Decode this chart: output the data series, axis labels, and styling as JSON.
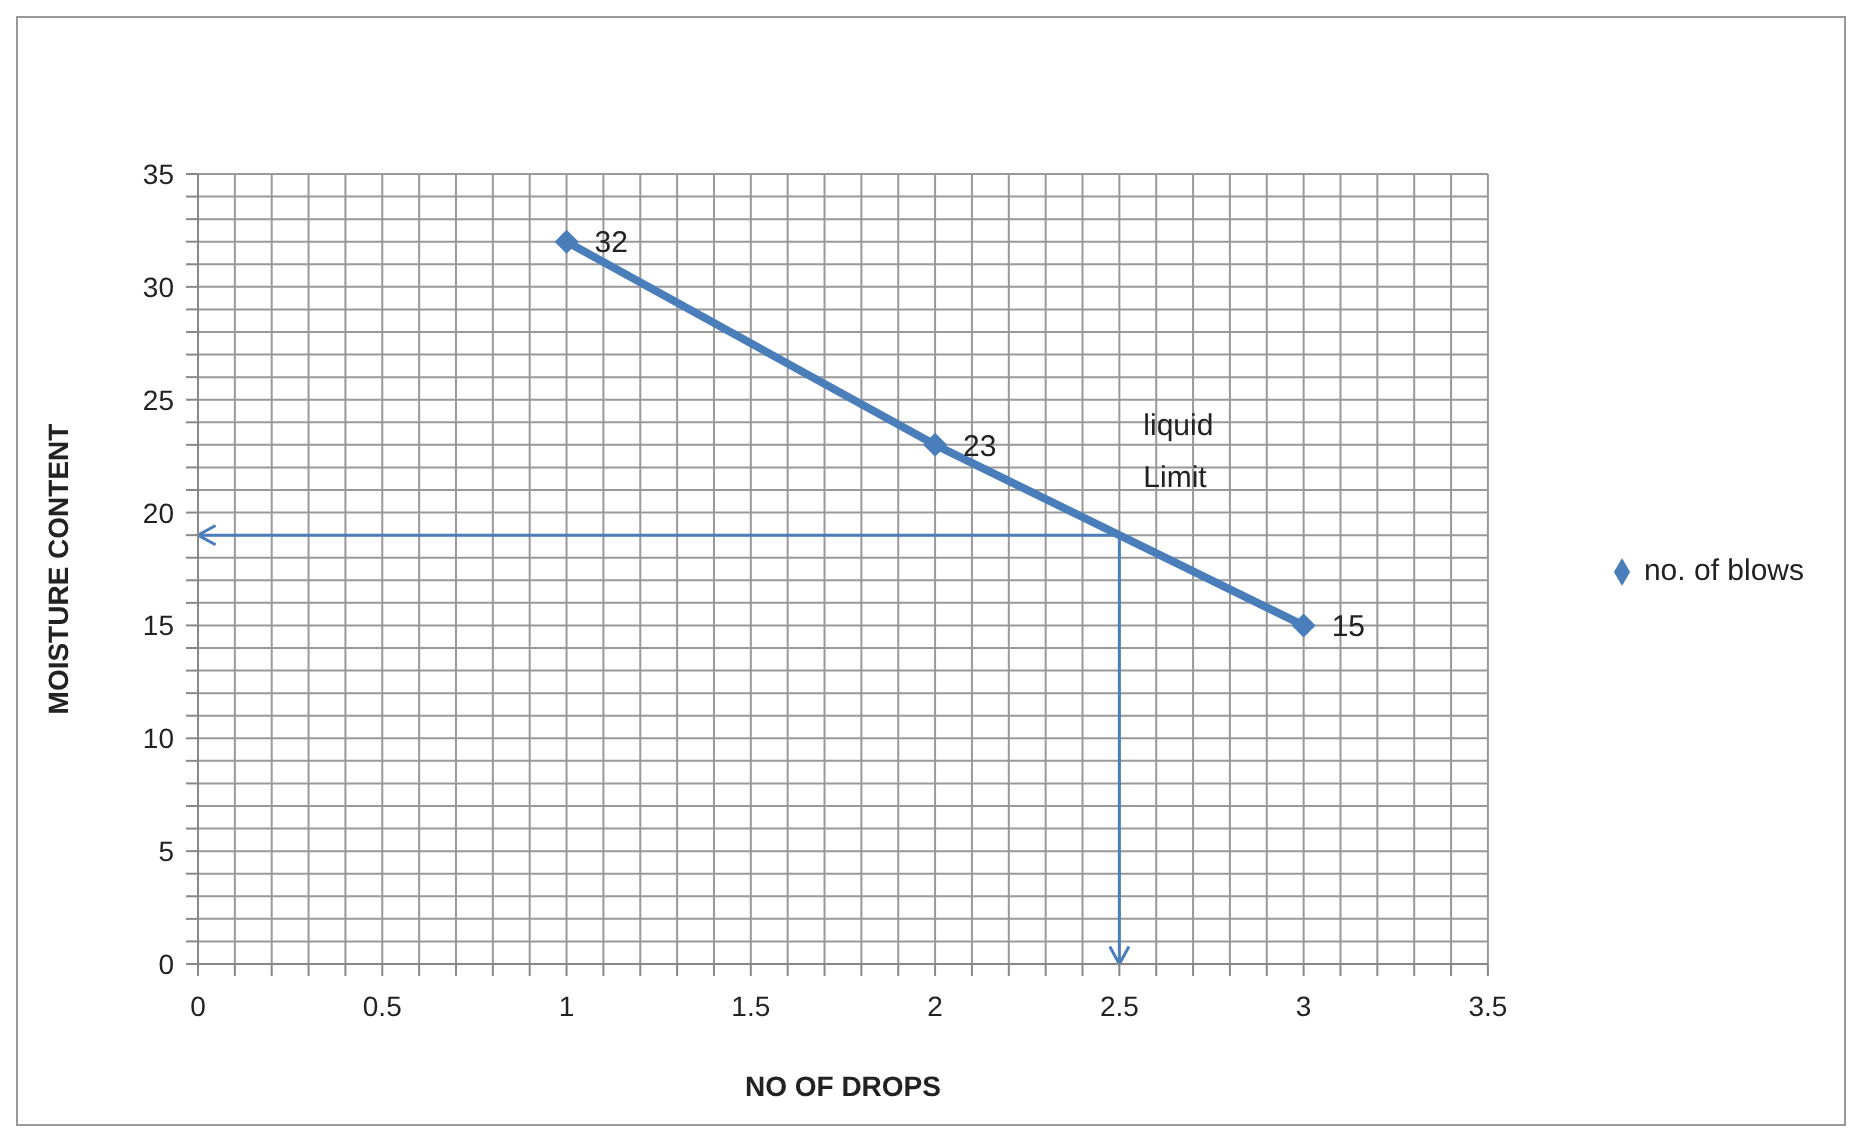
{
  "chart_data": {
    "type": "line",
    "xlabel": "NO OF DROPS",
    "ylabel": "MOISTURE  CONTENT",
    "x": [
      1,
      2,
      3
    ],
    "series": [
      {
        "name": "no. of blows",
        "color": "#4a7ebb",
        "values": [
          32,
          23,
          15
        ]
      }
    ],
    "xlim": [
      0,
      3.5
    ],
    "xticks": [
      0,
      {
        "value": 0.1,
        "label": null
      },
      {
        "value": 0.2,
        "label": null
      },
      {
        "value": 0.3,
        "label": null
      },
      {
        "value": 0.4,
        "label": null
      },
      0.5,
      {
        "value": 0.6,
        "label": null
      },
      {
        "value": 0.7,
        "label": null
      },
      {
        "value": 0.8,
        "label": null
      },
      {
        "value": 0.9,
        "label": null
      },
      1,
      {
        "value": 1.1,
        "label": null
      },
      {
        "value": 1.2,
        "label": null
      },
      {
        "value": 1.3,
        "label": null
      },
      {
        "value": 1.4,
        "label": null
      },
      1.5,
      {
        "value": 1.6,
        "label": null
      },
      {
        "value": 1.7,
        "label": null
      },
      {
        "value": 1.8,
        "label": null
      },
      {
        "value": 1.9,
        "label": null
      },
      2,
      {
        "value": 2.1,
        "label": null
      },
      {
        "value": 2.2,
        "label": null
      },
      {
        "value": 2.3,
        "label": null
      },
      {
        "value": 2.4,
        "label": null
      },
      2.5,
      {
        "value": 2.6,
        "label": null
      },
      {
        "value": 2.7,
        "label": null
      },
      {
        "value": 2.8,
        "label": null
      },
      {
        "value": 2.9,
        "label": null
      },
      3,
      {
        "value": 3.1,
        "label": null
      },
      {
        "value": 3.2,
        "label": null
      },
      {
        "value": 3.3,
        "label": null
      },
      {
        "value": 3.4,
        "label": null
      },
      3.5
    ],
    "ylim": [
      0,
      35
    ],
    "yticks": [
      0,
      {
        "value": 1,
        "label": null
      },
      {
        "value": 2,
        "label": null
      },
      {
        "value": 3,
        "label": null
      },
      {
        "value": 4,
        "label": null
      },
      5,
      {
        "value": 6,
        "label": null
      },
      {
        "value": 7,
        "label": null
      },
      {
        "value": 8,
        "label": null
      },
      {
        "value": 9,
        "label": null
      },
      10,
      {
        "value": 11,
        "label": null
      },
      {
        "value": 12,
        "label": null
      },
      {
        "value": 13,
        "label": null
      },
      {
        "value": 14,
        "label": null
      },
      15,
      {
        "value": 16,
        "label": null
      },
      {
        "value": 17,
        "label": null
      },
      {
        "value": 18,
        "label": null
      },
      {
        "value": 19,
        "label": null
      },
      20,
      {
        "value": 21,
        "label": null
      },
      {
        "value": 22,
        "label": null
      },
      {
        "value": 23,
        "label": null
      },
      {
        "value": 24,
        "label": null
      },
      25,
      {
        "value": 26,
        "label": null
      },
      {
        "value": 27,
        "label": null
      },
      {
        "value": 28,
        "label": null
      },
      {
        "value": 29,
        "label": null
      },
      30,
      {
        "value": 31,
        "label": null
      },
      {
        "value": 32,
        "label": null
      },
      {
        "value": 33,
        "label": null
      },
      {
        "value": 34,
        "label": null
      },
      35
    ],
    "annotations": [
      {
        "text": "liquid Limit",
        "x": 2.5,
        "y": 19
      }
    ],
    "ref_lines": [
      {
        "axis": "y",
        "value": 19,
        "color": "#4a7ebb"
      },
      {
        "axis": "x",
        "value": 2.5,
        "color": "#4a7ebb"
      }
    ],
    "grid": true,
    "legend": "right",
    "marker": "diamond",
    "line_style": "solid",
    "data_labels": true
  }
}
